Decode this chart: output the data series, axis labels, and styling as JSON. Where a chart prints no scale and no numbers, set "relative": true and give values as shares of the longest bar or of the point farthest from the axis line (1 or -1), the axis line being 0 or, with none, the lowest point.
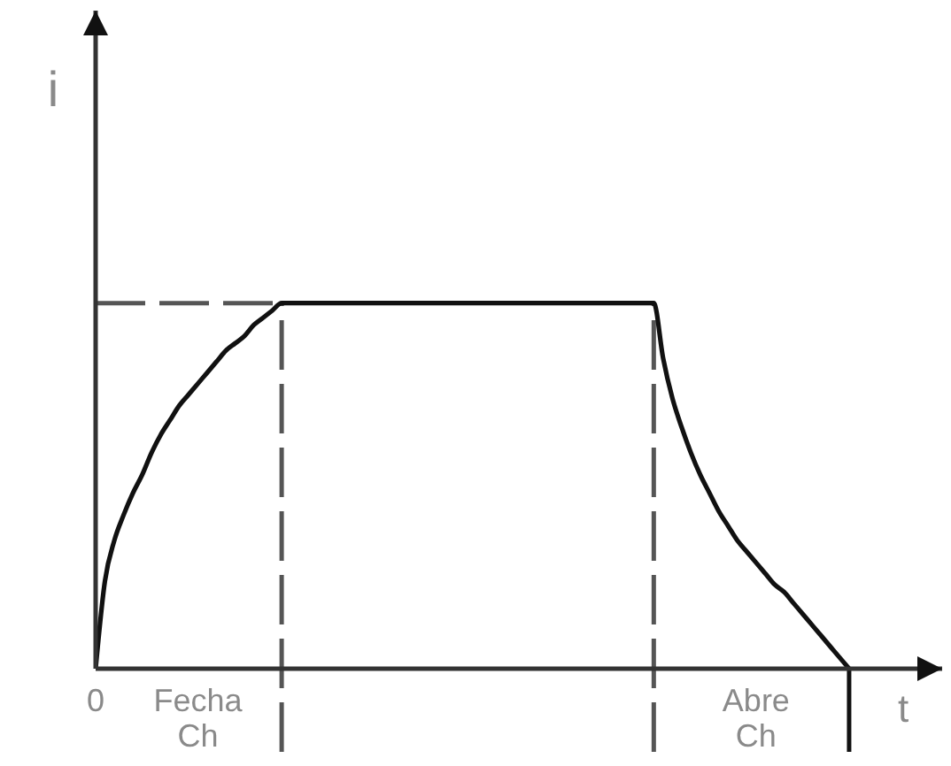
{
  "chart_data": {
    "type": "line",
    "xlabel": "t",
    "ylabel": "i",
    "relative": true,
    "marker": "none",
    "categories": [
      "0",
      null,
      null,
      null,
      null,
      null,
      null,
      null,
      null,
      null,
      null,
      "Fecha\nCh",
      null,
      null,
      null,
      null,
      null,
      null,
      null,
      null,
      null,
      null,
      null,
      null,
      null,
      null,
      null,
      null,
      null,
      null,
      null,
      null,
      null,
      null,
      null,
      null,
      null,
      null,
      null,
      null,
      null,
      null,
      null,
      null,
      null,
      null,
      null,
      null,
      null,
      null,
      null,
      null,
      null,
      null,
      null,
      null,
      null,
      null,
      null,
      null,
      null,
      null,
      null,
      null,
      null,
      null,
      null,
      null,
      null,
      null,
      null,
      "Abre\nCh",
      null,
      null,
      null,
      null,
      null,
      null,
      null,
      null,
      null,
      null,
      null,
      null,
      null,
      null,
      null,
      null,
      null,
      null,
      null,
      null
    ],
    "series": [
      {
        "color": "#111111",
        "values": [
          0,
          0.24,
          0.35,
          0.42,
          0.48,
          0.53,
          0.59,
          0.64,
          0.68,
          0.72,
          0.75,
          0.78,
          0.81,
          0.84,
          0.87,
          0.89,
          0.91,
          0.94,
          0.96,
          0.98,
          1,
          1,
          1,
          1,
          1,
          1,
          1,
          1,
          1,
          1,
          1,
          1,
          1,
          1,
          1,
          1,
          1,
          1,
          1,
          1,
          1,
          1,
          1,
          1,
          1,
          1,
          1,
          1,
          1,
          1,
          1,
          1,
          1,
          1,
          1,
          1,
          1,
          1,
          1,
          1,
          1,
          0.85,
          0.74,
          0.66,
          0.59,
          0.53,
          0.48,
          0.43,
          0.39,
          0.35,
          0.32,
          0.29,
          0.26,
          0.23,
          0.21,
          0.18,
          0.15,
          0.12,
          0.09,
          0.06,
          0.03,
          0,
          null,
          null,
          null,
          null,
          null,
          null,
          null,
          null,
          null,
          null
        ]
      }
    ],
    "ref_lines": [
      {
        "axis": "y",
        "value": 1,
        "color": "#555555",
        "line_style": "dashed"
      }
    ]
  }
}
